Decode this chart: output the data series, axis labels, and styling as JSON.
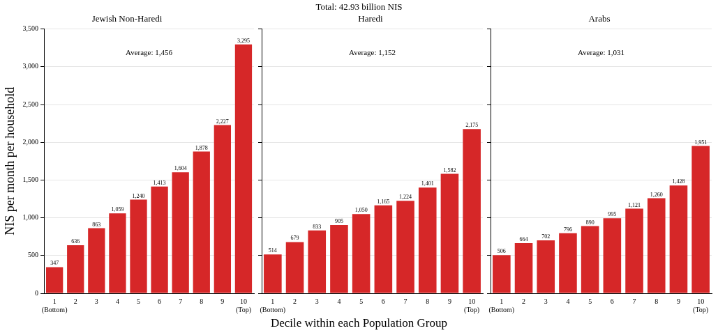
{
  "chart_data": [
    {
      "type": "bar",
      "title": "Jewish Non-Haredi",
      "ylabel": "NIS per month per household",
      "categories": [
        "1\n(Bottom)",
        "2",
        "3",
        "4",
        "5",
        "6",
        "7",
        "8",
        "9",
        "10\n(Top)"
      ],
      "values": [
        347,
        636,
        863,
        1059,
        1240,
        1413,
        1604,
        1878,
        2227,
        3295
      ],
      "value_labels": [
        "347",
        "636",
        "863",
        "1,059",
        "1,240",
        "1,413",
        "1,604",
        "1,878",
        "2,227",
        "3,295"
      ],
      "color": "#d62728",
      "ylim": [
        0,
        3500
      ],
      "yticks": [
        {
          "value": 0,
          "label": "0"
        },
        {
          "value": 500,
          "label": "500"
        },
        {
          "value": 1000,
          "label": "1,000"
        },
        {
          "value": 1500,
          "label": "1,500"
        },
        {
          "value": 2000,
          "label": "2,000"
        },
        {
          "value": 2500,
          "label": "2,500"
        },
        {
          "value": 3000,
          "label": "3,000"
        },
        {
          "value": 3500,
          "label": "3,500"
        }
      ],
      "grid": "y",
      "annotations": [
        "Average: 1,456"
      ]
    },
    {
      "type": "bar",
      "title": "Haredi",
      "subtitle": "Total: 42.93 billion NIS",
      "xlabel": "Decile within each Population Group",
      "categories": [
        "1\n(Bottom)",
        "2",
        "3",
        "4",
        "5",
        "6",
        "7",
        "8",
        "9",
        "10\n(Top)"
      ],
      "values": [
        514,
        679,
        833,
        905,
        1050,
        1165,
        1224,
        1401,
        1582,
        2175
      ],
      "value_labels": [
        "514",
        "679",
        "833",
        "905",
        "1,050",
        "1,165",
        "1,224",
        "1,401",
        "1,582",
        "2,175"
      ],
      "color": "#d62728",
      "ylim": [
        0,
        3500
      ],
      "yticks": [
        0,
        500,
        1000,
        1500,
        2000,
        2500,
        3000,
        3500
      ],
      "tick_labels": "x",
      "grid": "y",
      "annotations": [
        "Average: 1,152"
      ]
    },
    {
      "type": "bar",
      "title": "Arabs",
      "categories": [
        "1\n(Bottom)",
        "2",
        "3",
        "4",
        "5",
        "6",
        "7",
        "8",
        "9",
        "10\n(Top)"
      ],
      "values": [
        506,
        664,
        702,
        796,
        890,
        995,
        1121,
        1260,
        1428,
        1951
      ],
      "value_labels": [
        "506",
        "664",
        "702",
        "796",
        "890",
        "995",
        "1,121",
        "1,260",
        "1,428",
        "1,951"
      ],
      "color": "#d62728",
      "ylim": [
        0,
        3500
      ],
      "yticks": [
        0,
        500,
        1000,
        1500,
        2000,
        2500,
        3000,
        3500
      ],
      "tick_labels": "x",
      "grid": "y",
      "annotations": [
        "Average: 1,031"
      ]
    }
  ]
}
